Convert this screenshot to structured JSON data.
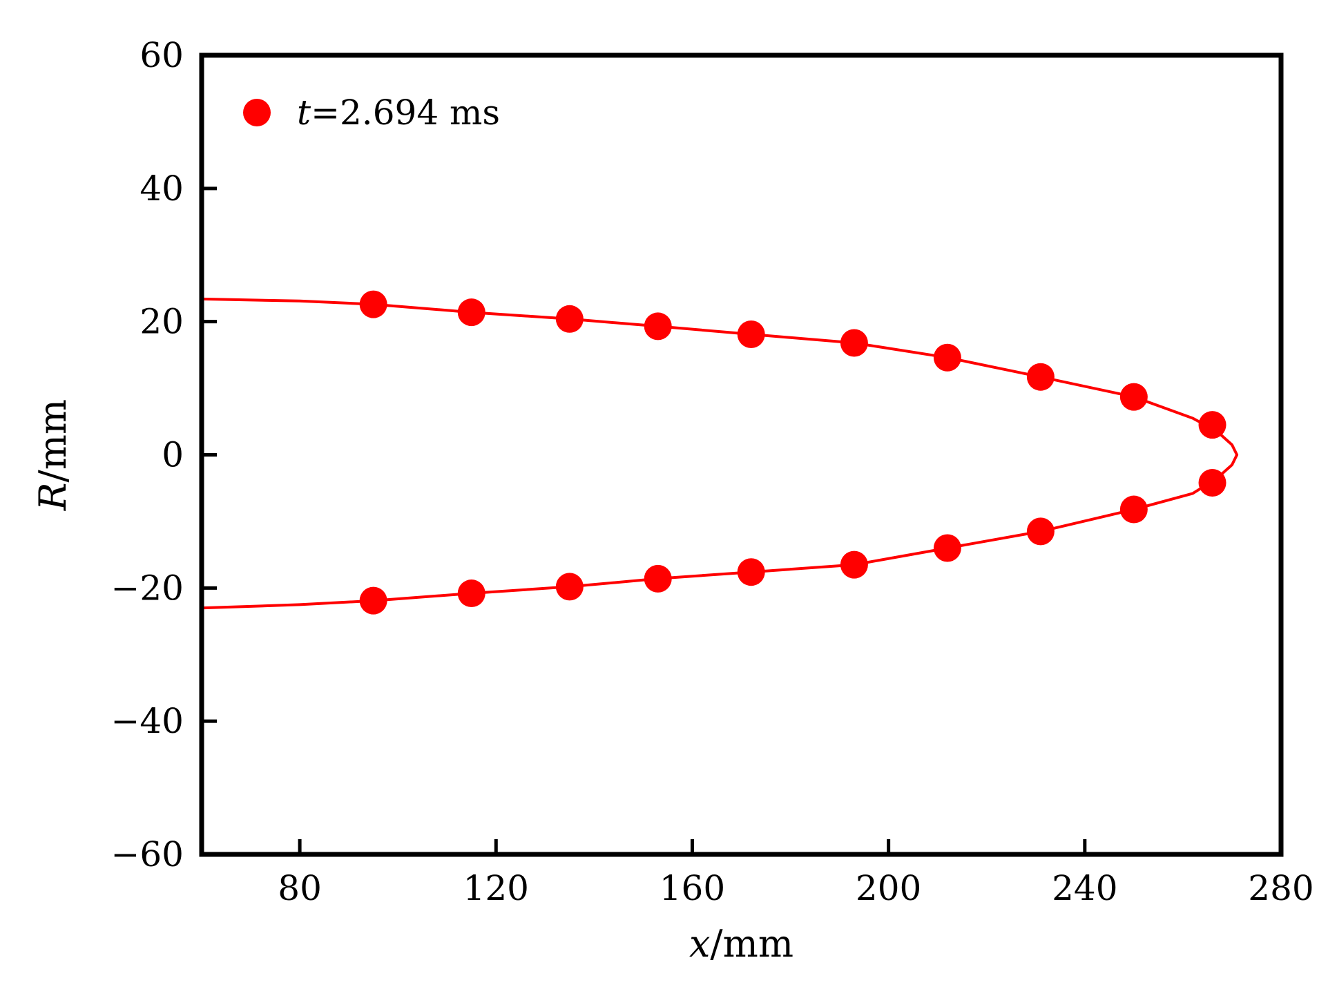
{
  "chart_data": {
    "type": "line",
    "title": "",
    "xlabel": {
      "var": "x",
      "unit": "/mm"
    },
    "ylabel": {
      "var": "R",
      "unit": "/mm"
    },
    "xlim": [
      60,
      280
    ],
    "ylim": [
      -60,
      60
    ],
    "x_ticks": [
      80,
      120,
      160,
      200,
      240,
      280
    ],
    "y_ticks": [
      -60,
      -40,
      -20,
      0,
      20,
      40,
      60
    ],
    "x_tick_labels": [
      "80",
      "120",
      "160",
      "200",
      "240",
      "280"
    ],
    "y_tick_labels": [
      "−60",
      "−40",
      "−20",
      "0",
      "20",
      "40",
      "60"
    ],
    "grid": false,
    "legend": {
      "position": "top-left",
      "var": "t",
      "text": "=2.694 ms"
    },
    "series": [
      {
        "name": "t=2.694 ms",
        "color": "#ff0000",
        "line": [
          [
            60,
            23.4
          ],
          [
            80,
            23.1
          ],
          [
            95,
            22.6
          ],
          [
            115,
            21.4
          ],
          [
            135,
            20.4
          ],
          [
            153,
            19.3
          ],
          [
            172,
            18.1
          ],
          [
            193,
            16.8
          ],
          [
            212,
            14.6
          ],
          [
            231,
            11.7
          ],
          [
            250,
            8.7
          ],
          [
            262,
            5.5
          ],
          [
            267,
            3.5
          ],
          [
            270,
            1.5
          ],
          [
            271,
            0
          ],
          [
            270,
            -1.5
          ],
          [
            267,
            -3.5
          ],
          [
            262,
            -5.8
          ],
          [
            250,
            -8.2
          ],
          [
            231,
            -11.5
          ],
          [
            212,
            -14.0
          ],
          [
            193,
            -16.5
          ],
          [
            172,
            -17.6
          ],
          [
            153,
            -18.6
          ],
          [
            135,
            -19.8
          ],
          [
            115,
            -20.8
          ],
          [
            95,
            -21.9
          ],
          [
            80,
            -22.5
          ],
          [
            60,
            -23.0
          ]
        ],
        "markers": [
          [
            95,
            22.6
          ],
          [
            115,
            21.4
          ],
          [
            135,
            20.4
          ],
          [
            153,
            19.3
          ],
          [
            172,
            18.1
          ],
          [
            193,
            16.8
          ],
          [
            212,
            14.6
          ],
          [
            231,
            11.7
          ],
          [
            250,
            8.7
          ],
          [
            266,
            4.5
          ],
          [
            266,
            -4.2
          ],
          [
            250,
            -8.2
          ],
          [
            231,
            -11.5
          ],
          [
            212,
            -14.0
          ],
          [
            193,
            -16.5
          ],
          [
            172,
            -17.6
          ],
          [
            153,
            -18.6
          ],
          [
            135,
            -19.8
          ],
          [
            115,
            -20.8
          ],
          [
            95,
            -21.9
          ]
        ]
      }
    ]
  }
}
